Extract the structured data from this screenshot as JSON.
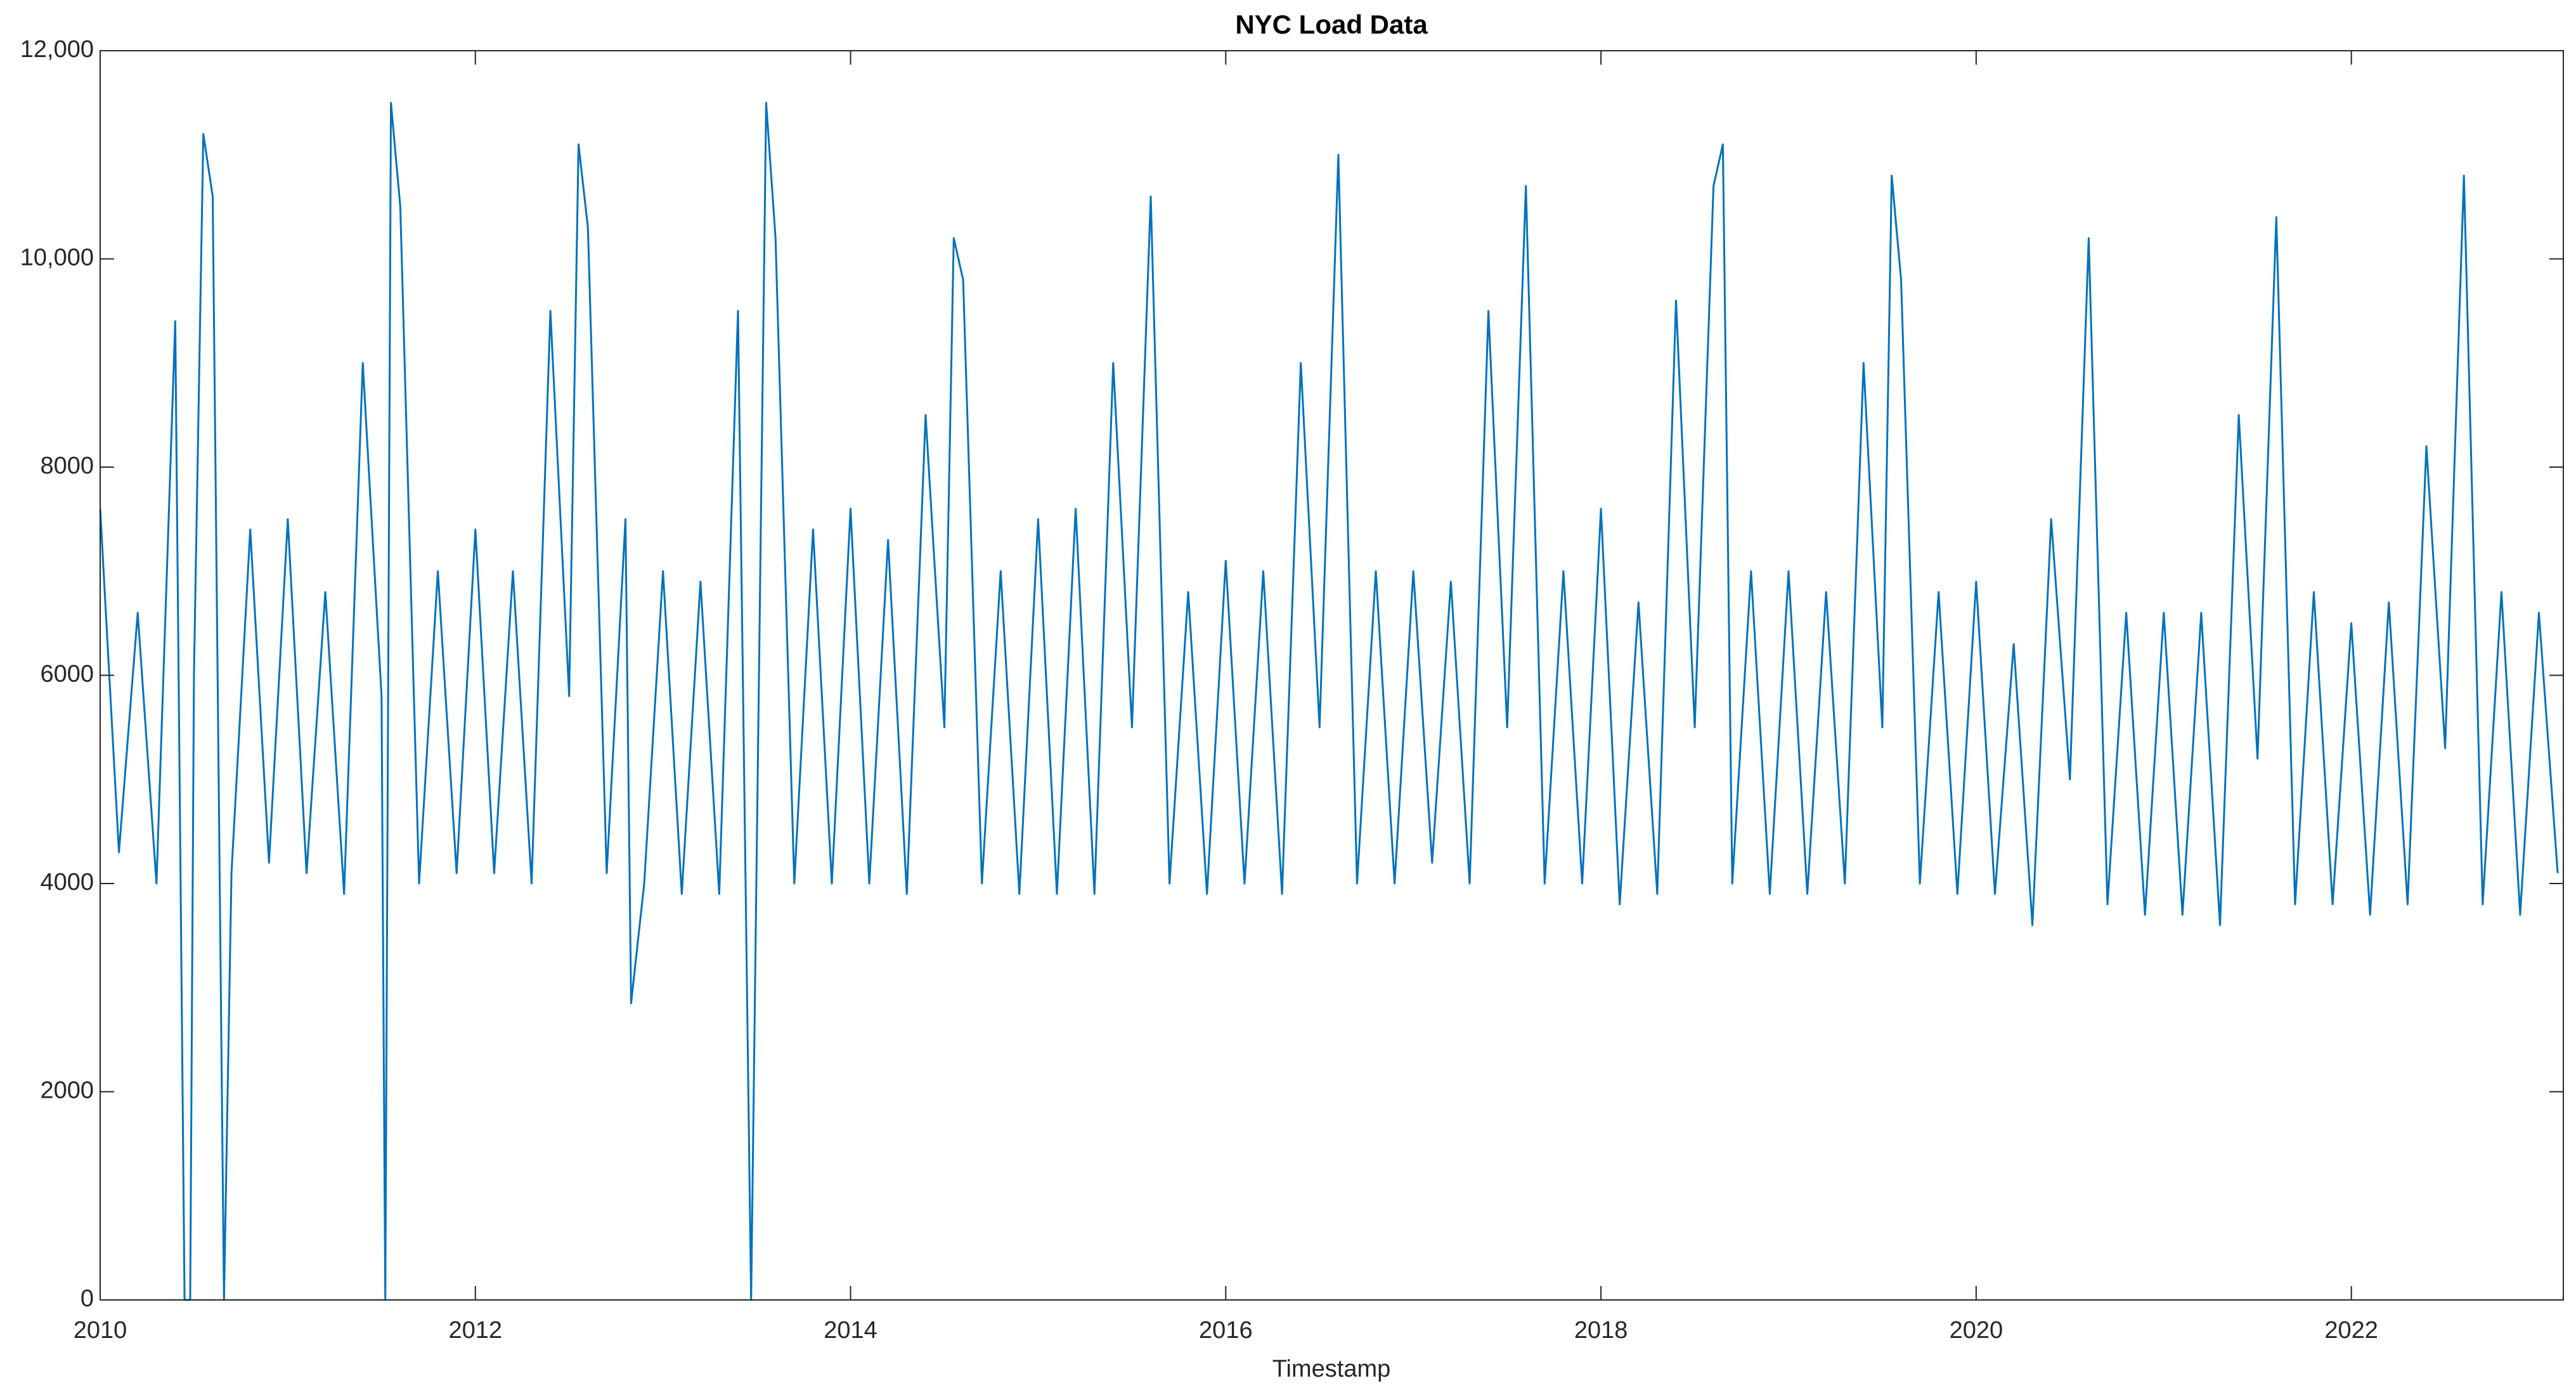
{
  "chart_data": {
    "type": "line",
    "title": "NYC Load Data",
    "x_label": "Timestamp",
    "color": "#0072bd",
    "xlim": [
      2010,
      2023.13
    ],
    "xticks": [
      2010,
      2012,
      2014,
      2016,
      2018,
      2020,
      2022
    ],
    "ylim": [
      0,
      12000
    ],
    "yticks": [
      0,
      2000,
      4000,
      6000,
      8000,
      {
        "value": 10000,
        "label": "10,000"
      },
      {
        "value": 12000,
        "label": "12,000"
      }
    ],
    "grid": false,
    "x": [
      2010.0,
      2010.1,
      2010.2,
      2010.3,
      2010.4,
      2010.45,
      2010.48,
      2010.5,
      2010.55,
      2010.6,
      2010.66,
      2010.7,
      2010.8,
      2010.9,
      2011.0,
      2011.1,
      2011.2,
      2011.3,
      2011.4,
      2011.5,
      2011.52,
      2011.55,
      2011.6,
      2011.7,
      2011.8,
      2011.9,
      2012.0,
      2012.1,
      2012.2,
      2012.3,
      2012.4,
      2012.5,
      2012.55,
      2012.6,
      2012.7,
      2012.8,
      2012.83,
      2012.9,
      2013.0,
      2013.1,
      2013.2,
      2013.3,
      2013.4,
      2013.47,
      2013.55,
      2013.6,
      2013.7,
      2013.8,
      2013.9,
      2014.0,
      2014.1,
      2014.2,
      2014.3,
      2014.4,
      2014.5,
      2014.55,
      2014.6,
      2014.7,
      2014.8,
      2014.9,
      2015.0,
      2015.1,
      2015.2,
      2015.3,
      2015.4,
      2015.5,
      2015.6,
      2015.7,
      2015.8,
      2015.9,
      2016.0,
      2016.1,
      2016.2,
      2016.3,
      2016.4,
      2016.5,
      2016.6,
      2016.7,
      2016.8,
      2016.9,
      2017.0,
      2017.1,
      2017.2,
      2017.3,
      2017.4,
      2017.5,
      2017.6,
      2017.7,
      2017.8,
      2017.9,
      2018.0,
      2018.1,
      2018.2,
      2018.3,
      2018.4,
      2018.5,
      2018.6,
      2018.65,
      2018.7,
      2018.8,
      2018.9,
      2019.0,
      2019.1,
      2019.2,
      2019.3,
      2019.4,
      2019.5,
      2019.55,
      2019.6,
      2019.7,
      2019.8,
      2019.9,
      2020.0,
      2020.1,
      2020.2,
      2020.3,
      2020.4,
      2020.5,
      2020.6,
      2020.7,
      2020.8,
      2020.9,
      2021.0,
      2021.1,
      2021.2,
      2021.3,
      2021.4,
      2021.5,
      2021.6,
      2021.7,
      2021.8,
      2021.9,
      2022.0,
      2022.1,
      2022.2,
      2022.3,
      2022.4,
      2022.5,
      2022.6,
      2022.7,
      2022.8,
      2022.9,
      2023.0,
      2023.1
    ],
    "values": [
      7600,
      4300,
      6600,
      4000,
      9400,
      0,
      0,
      6000,
      11200,
      10600,
      0,
      4100,
      7400,
      4200,
      7500,
      4100,
      6800,
      3900,
      9000,
      5800,
      0,
      11500,
      10500,
      4000,
      7000,
      4100,
      7400,
      4100,
      7000,
      4000,
      9500,
      5800,
      11100,
      10300,
      4100,
      7500,
      2850,
      4000,
      7000,
      3900,
      6900,
      3900,
      9500,
      0,
      11500,
      10200,
      4000,
      7400,
      4000,
      7600,
      4000,
      7300,
      3900,
      8500,
      5500,
      10200,
      9800,
      4000,
      7000,
      3900,
      7500,
      3900,
      7600,
      3900,
      9000,
      5500,
      10600,
      4000,
      6800,
      3900,
      7100,
      4000,
      7000,
      3900,
      9000,
      5500,
      11000,
      4000,
      7000,
      4000,
      7000,
      4200,
      6900,
      4000,
      9500,
      5500,
      10700,
      4000,
      7000,
      4000,
      7600,
      3800,
      6700,
      3900,
      9600,
      5500,
      10700,
      11100,
      4000,
      7000,
      3900,
      7000,
      3900,
      6800,
      4000,
      9000,
      5500,
      10800,
      9800,
      4000,
      6800,
      3900,
      6900,
      3900,
      6300,
      3600,
      7500,
      5000,
      10200,
      3800,
      6600,
      3700,
      6600,
      3700,
      6600,
      3600,
      8500,
      5200,
      10400,
      3800,
      6800,
      3800,
      6500,
      3700,
      6700,
      3800,
      8200,
      5300,
      10800,
      3800,
      6800,
      3700,
      6600,
      4100
    ]
  }
}
